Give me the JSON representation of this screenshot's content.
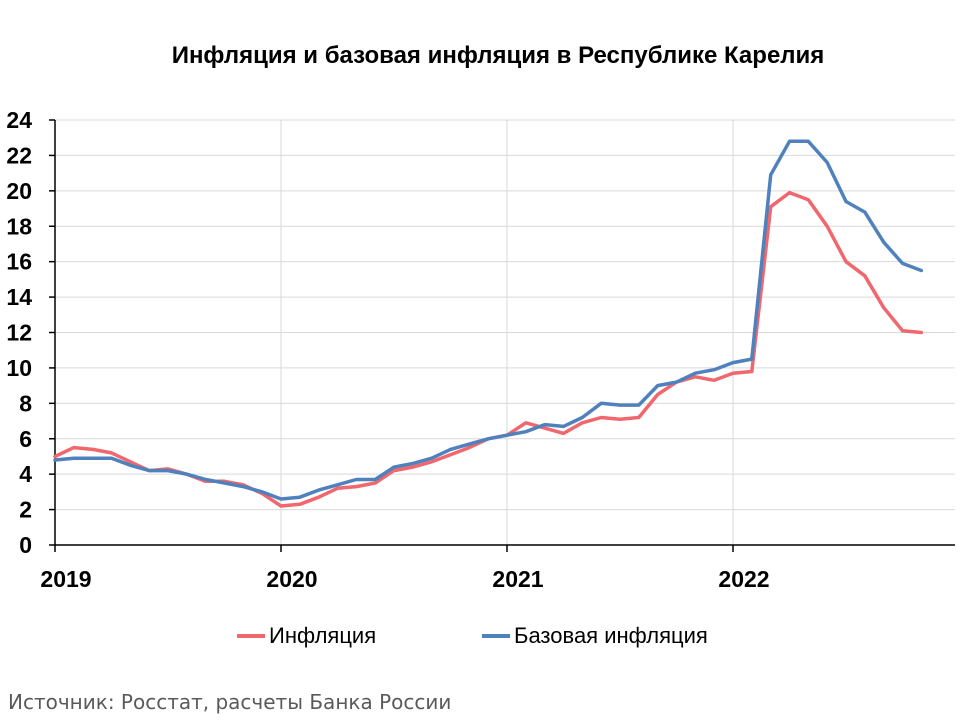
{
  "title": "Инфляция и базовая инфляция в Республике Карелия",
  "source": "Источник: Росстат, расчеты Банка России",
  "colors": {
    "inflation": "#f0676d",
    "core": "#4f81bd",
    "grid": "#d9d9d9",
    "axis": "#000000"
  },
  "chart_data": {
    "type": "line",
    "title": "Инфляция и базовая инфляция в Республике Карелия",
    "xlabel": "",
    "ylabel": "",
    "ylim": [
      0,
      24
    ],
    "yticks": [
      0,
      2,
      4,
      6,
      8,
      10,
      12,
      14,
      16,
      18,
      20,
      22,
      24
    ],
    "x_ticks": [
      "2019",
      "2020",
      "2021",
      "2022"
    ],
    "grid": true,
    "legend_position": "bottom",
    "x": [
      "2019-01",
      "2019-02",
      "2019-03",
      "2019-04",
      "2019-05",
      "2019-06",
      "2019-07",
      "2019-08",
      "2019-09",
      "2019-10",
      "2019-11",
      "2019-12",
      "2020-01",
      "2020-02",
      "2020-03",
      "2020-04",
      "2020-05",
      "2020-06",
      "2020-07",
      "2020-08",
      "2020-09",
      "2020-10",
      "2020-11",
      "2020-12",
      "2021-01",
      "2021-02",
      "2021-03",
      "2021-04",
      "2021-05",
      "2021-06",
      "2021-07",
      "2021-08",
      "2021-09",
      "2021-10",
      "2021-11",
      "2021-12",
      "2022-01",
      "2022-02",
      "2022-03",
      "2022-04",
      "2022-05",
      "2022-06",
      "2022-07",
      "2022-08",
      "2022-09",
      "2022-10",
      "2022-11"
    ],
    "series": [
      {
        "name": "Инфляция",
        "color": "#f0676d",
        "values": [
          5.0,
          5.5,
          5.4,
          5.2,
          4.7,
          4.2,
          4.3,
          4.0,
          3.6,
          3.6,
          3.4,
          2.9,
          2.2,
          2.3,
          2.7,
          3.2,
          3.3,
          3.5,
          4.2,
          4.4,
          4.7,
          5.1,
          5.5,
          6.0,
          6.2,
          6.9,
          6.6,
          6.3,
          6.9,
          7.2,
          7.1,
          7.2,
          8.5,
          9.2,
          9.5,
          9.3,
          9.7,
          9.8,
          19.1,
          19.9,
          19.5,
          18.0,
          16.0,
          15.2,
          13.4,
          12.1,
          12.0
        ]
      },
      {
        "name": "Базовая инфляция",
        "color": "#4f81bd",
        "values": [
          4.8,
          4.9,
          4.9,
          4.9,
          4.5,
          4.2,
          4.2,
          4.0,
          3.7,
          3.5,
          3.3,
          3.0,
          2.6,
          2.7,
          3.1,
          3.4,
          3.7,
          3.7,
          4.4,
          4.6,
          4.9,
          5.4,
          5.7,
          6.0,
          6.2,
          6.4,
          6.8,
          6.7,
          7.2,
          8.0,
          7.9,
          7.9,
          9.0,
          9.2,
          9.7,
          9.9,
          10.3,
          10.5,
          20.9,
          22.8,
          22.8,
          21.6,
          19.4,
          18.8,
          17.1,
          15.9,
          15.5
        ]
      }
    ]
  }
}
